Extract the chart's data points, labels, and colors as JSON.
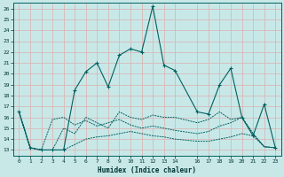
{
  "xlabel": "Humidex (Indice chaleur)",
  "bg_color": "#c8e8e8",
  "grid_color": "#d8b8b8",
  "line_color": "#006060",
  "xlim": [
    -0.5,
    23.5
  ],
  "ylim": [
    12.5,
    26.5
  ],
  "yticks": [
    13,
    14,
    15,
    16,
    17,
    18,
    19,
    20,
    21,
    22,
    23,
    24,
    25,
    26
  ],
  "xticks": [
    0,
    1,
    2,
    3,
    4,
    5,
    6,
    7,
    8,
    9,
    10,
    11,
    12,
    13,
    14,
    16,
    17,
    18,
    19,
    20,
    21,
    22,
    23
  ],
  "line1_x": [
    0,
    1,
    2,
    3,
    4,
    5,
    6,
    7,
    8,
    9,
    10,
    11,
    12,
    13,
    14,
    16,
    17,
    18,
    19,
    20,
    21,
    22,
    23
  ],
  "line1_y": [
    16.5,
    13.2,
    13.0,
    13.0,
    13.0,
    18.5,
    20.2,
    21.0,
    18.8,
    21.7,
    22.3,
    22.0,
    26.2,
    20.8,
    20.3,
    16.5,
    16.3,
    19.0,
    20.5,
    16.0,
    14.3,
    17.2,
    13.2
  ],
  "line2_x": [
    0,
    1,
    2,
    3,
    4,
    5,
    6,
    7,
    8,
    9,
    10,
    11,
    12,
    13,
    14,
    16,
    17,
    18,
    19,
    20,
    21,
    22,
    23
  ],
  "line2_y": [
    16.5,
    13.2,
    13.0,
    15.8,
    16.0,
    15.3,
    15.7,
    15.2,
    15.5,
    15.8,
    15.3,
    15.0,
    15.2,
    15.0,
    14.8,
    14.5,
    14.7,
    15.2,
    15.5,
    16.0,
    14.5,
    13.3,
    13.2
  ],
  "line3_x": [
    0,
    1,
    2,
    3,
    4,
    5,
    6,
    7,
    8,
    9,
    10,
    11,
    12,
    13,
    14,
    16,
    17,
    18,
    19,
    20,
    21,
    22,
    23
  ],
  "line3_y": [
    16.5,
    13.2,
    13.0,
    13.0,
    13.0,
    13.5,
    14.0,
    14.2,
    14.3,
    14.5,
    14.7,
    14.5,
    14.3,
    14.2,
    14.0,
    13.8,
    13.8,
    14.0,
    14.2,
    14.5,
    14.3,
    13.3,
    13.2
  ],
  "line4_x": [
    0,
    1,
    2,
    3,
    4,
    5,
    6,
    7,
    8,
    9,
    10,
    11,
    12,
    13,
    14,
    16,
    17,
    18,
    19,
    20,
    21,
    22,
    23
  ],
  "line4_y": [
    16.5,
    13.2,
    13.0,
    13.0,
    15.0,
    14.5,
    16.0,
    15.5,
    15.0,
    16.5,
    16.0,
    15.8,
    16.2,
    16.0,
    16.0,
    15.5,
    15.8,
    16.5,
    15.8,
    16.0,
    14.5,
    13.3,
    13.2
  ]
}
